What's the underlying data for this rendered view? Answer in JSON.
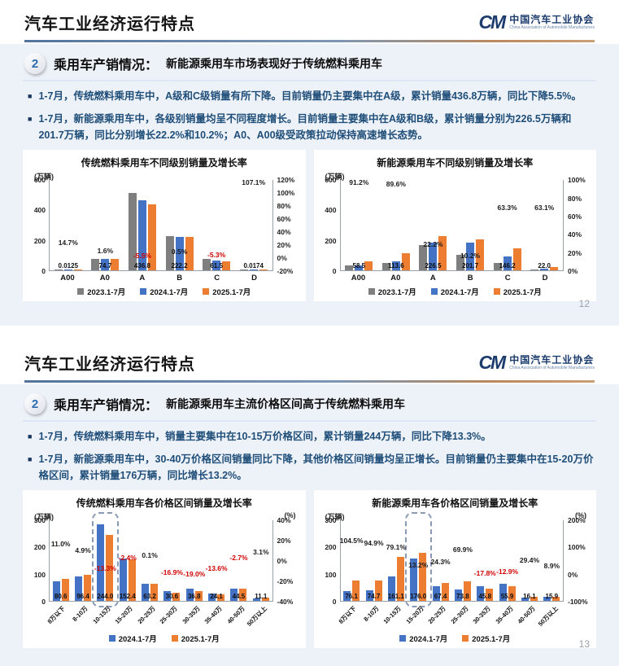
{
  "logo": {
    "mark": "CM",
    "org_cn": "中国汽车工业协会",
    "org_en": "China Association of Automobile Manufacturers"
  },
  "slides": [
    {
      "page_title": "汽车工业经济运行特点",
      "section_number": "2",
      "section_heading": "乘用车产销情况：",
      "section_subheading": "新能源乘用车市场表现好于传统燃料乘用车",
      "bullets": [
        "1-7月，传统燃料乘用车中，A级和C级销量有所下降。目前销量仍主要集中在A级，累计销量436.8万辆，同比下降5.5%。",
        "1-7月，新能源乘用车中，各级别销量均呈不同程度增长。目前销量主要集中在A级和B级，累计销量分别为226.5万辆和201.7万辆，同比分别增长22.2%和10.2%；A0、A00级受政策拉动保持高速增长态势。"
      ],
      "page_number": "12"
    },
    {
      "page_title": "汽车工业经济运行特点",
      "section_number": "2",
      "section_heading": "乘用车产销情况：",
      "section_subheading": "新能源乘用车主流价格区间高于传统燃料乘用车",
      "bullets": [
        "1-7月，传统燃料乘用车中，销量主要集中在10-15万价格区间，累计销量244万辆，同比下降13.3%。",
        "1-7月，新能源乘用车中，30-40万价格区间销量同比下降，其他价格区间销量均呈正增长。目前销量仍主要集中在15-20万价格区间，累计销量176万辆，同比增长13.2%。"
      ],
      "page_number": "13"
    }
  ],
  "colors": {
    "series_2023": "#7f7f7f",
    "series_2024": "#4472c4",
    "series_2025": "#ed7d31",
    "negative_growth": "#d00000",
    "bullet_text": "#1f4e79"
  },
  "chart_data": [
    {
      "type": "bar",
      "title": "传统燃料乘用车不同级别销量及增长率",
      "unit_left": "(万辆)",
      "unit_right": "",
      "categories": [
        "A00",
        "A0",
        "A",
        "B",
        "C",
        "D"
      ],
      "series": [
        {
          "name": "2023.1-7月",
          "color": "#7f7f7f",
          "values": [
            0.012,
            74.0,
            510.0,
            226.0,
            77.0,
            0.01
          ]
        },
        {
          "name": "2024.1-7月",
          "color": "#4472c4",
          "values": [
            0.011,
            73.5,
            462.2,
            221.1,
            64.9,
            0.008
          ]
        },
        {
          "name": "2025.1-7月",
          "color": "#ed7d31",
          "values": [
            0.0125,
            74.7,
            436.8,
            222.2,
            61.5,
            0.0174
          ]
        }
      ],
      "value_labels": [
        "0.0125",
        "74.7",
        "436.8",
        "222.2",
        "61.5",
        "0.0174"
      ],
      "growth": [
        14.7,
        1.6,
        -5.5,
        0.5,
        -5.3,
        107.1
      ],
      "growth_labels": [
        "14.7%",
        "1.6%",
        "-5.5%",
        "0.5%",
        "-5.3%",
        "107.1%"
      ],
      "left_ticks": [
        "600",
        "400",
        "200",
        "0"
      ],
      "left_max": 600,
      "right_ticks": [
        "120%",
        "100%",
        "80%",
        "60%",
        "40%",
        "20%",
        "0%",
        "-20%"
      ],
      "right_min": -20,
      "right_max": 120,
      "x_rotate": false,
      "highlight_index": null,
      "highlight_category": null
    },
    {
      "type": "bar",
      "title": "新能源乘用车不同级别销量及增长率",
      "unit_left": "(万辆)",
      "unit_right": "",
      "categories": [
        "A00",
        "A0",
        "A",
        "B",
        "C",
        "D"
      ],
      "series": [
        {
          "name": "2023.1-7月",
          "color": "#7f7f7f",
          "values": [
            32.0,
            50.0,
            165.0,
            105.0,
            50.0,
            3.0
          ]
        },
        {
          "name": "2024.1-7月",
          "color": "#4472c4",
          "values": [
            30.6,
            59.9,
            185.4,
            183.0,
            89.5,
            13.5
          ]
        },
        {
          "name": "2025.1-7月",
          "color": "#ed7d31",
          "values": [
            58.5,
            113.6,
            226.5,
            201.7,
            146.2,
            22.0
          ]
        }
      ],
      "value_labels": [
        "58.5",
        "113.6",
        "226.5",
        "201.7",
        "146.2",
        "22.0"
      ],
      "growth": [
        91.2,
        89.6,
        22.2,
        10.2,
        63.3,
        63.1
      ],
      "growth_labels": [
        "91.2%",
        "89.6%",
        "22.2%",
        "10.2%",
        "63.3%",
        "63.1%"
      ],
      "left_ticks": [
        "600",
        "400",
        "200",
        "0"
      ],
      "left_max": 600,
      "right_ticks": [
        "100%",
        "80%",
        "60%",
        "40%",
        "20%",
        "0%"
      ],
      "right_min": 0,
      "right_max": 100,
      "x_rotate": false,
      "highlight_index": null,
      "highlight_category": null
    },
    {
      "type": "bar",
      "title": "传统燃料乘用车各价格区间销量及增长率",
      "unit_left": "(万辆)",
      "unit_right": "(%)",
      "categories": [
        "8万以下",
        "8-10万",
        "10-15万",
        "15-20万",
        "20-25万",
        "25-30万",
        "30-35万",
        "35-40万",
        "40-50万",
        "50万以上"
      ],
      "series": [
        {
          "name": "2024.1-7月",
          "color": "#4472c4",
          "values": [
            72.6,
            91.9,
            281.4,
            156.1,
            63.1,
            36.8,
            45.4,
            27.9,
            45.7,
            10.8
          ]
        },
        {
          "name": "2025.1-7月",
          "color": "#ed7d31",
          "values": [
            80.6,
            96.4,
            244.0,
            152.4,
            63.2,
            30.6,
            36.8,
            24.1,
            44.5,
            11.1
          ]
        }
      ],
      "value_labels": [
        "80.6",
        "96.4",
        "244.0",
        "152.4",
        "63.2",
        "30.6",
        "36.8",
        "24.1",
        "44.5",
        "11.1"
      ],
      "growth": [
        11.0,
        4.9,
        -13.3,
        -2.4,
        0.1,
        -16.9,
        -19.0,
        -13.6,
        -2.7,
        3.1
      ],
      "growth_labels": [
        "11.0%",
        "4.9%",
        "-13.3%",
        "-2.4%",
        "0.1%",
        "-16.9%",
        "-19.0%",
        "-13.6%",
        "-2.7%",
        "3.1%"
      ],
      "left_ticks": [
        "300",
        "200",
        "100",
        "0"
      ],
      "left_max": 300,
      "right_ticks": [
        "40%",
        "20%",
        "0%",
        "-20%",
        "-40%"
      ],
      "right_min": -40,
      "right_max": 40,
      "x_rotate": true,
      "highlight_index": 2,
      "highlight_category": "10-15万"
    },
    {
      "type": "bar",
      "title": "新能源乘用车各价格区间销量及增长率",
      "unit_left": "(万辆)",
      "unit_right": "(%)",
      "categories": [
        "8万以下",
        "8-10万",
        "10-15万",
        "15-20万",
        "20-25万",
        "25-30万",
        "30-35万",
        "35-40万",
        "40-50万",
        "50万以上"
      ],
      "series": [
        {
          "name": "2024.1-7月",
          "color": "#4472c4",
          "values": [
            37.2,
            38.3,
            90.0,
            155.5,
            54.2,
            43.4,
            55.7,
            64.2,
            12.4,
            14.6
          ]
        },
        {
          "name": "2025.1-7月",
          "color": "#ed7d31",
          "values": [
            76.1,
            74.7,
            161.1,
            176.0,
            67.4,
            73.8,
            45.8,
            55.9,
            16.1,
            15.9
          ]
        }
      ],
      "value_labels": [
        "76.1",
        "74.7",
        "161.1",
        "176.0",
        "67.4",
        "73.8",
        "45.8",
        "55.9",
        "16.1",
        "15.9"
      ],
      "growth": [
        104.5,
        94.9,
        79.1,
        13.2,
        24.3,
        69.9,
        -17.8,
        -12.9,
        29.4,
        8.9
      ],
      "growth_labels": [
        "104.5%",
        "94.9%",
        "79.1%",
        "13.2%",
        "24.3%",
        "69.9%",
        "-17.8%",
        "-12.9%",
        "29.4%",
        "8.9%"
      ],
      "left_ticks": [
        "300",
        "200",
        "100",
        "0"
      ],
      "left_max": 300,
      "right_ticks": [
        "200%",
        "100%",
        "0%",
        "-100%"
      ],
      "right_min": -100,
      "right_max": 200,
      "x_rotate": true,
      "highlight_index": 3,
      "highlight_category": "15-20万"
    }
  ]
}
